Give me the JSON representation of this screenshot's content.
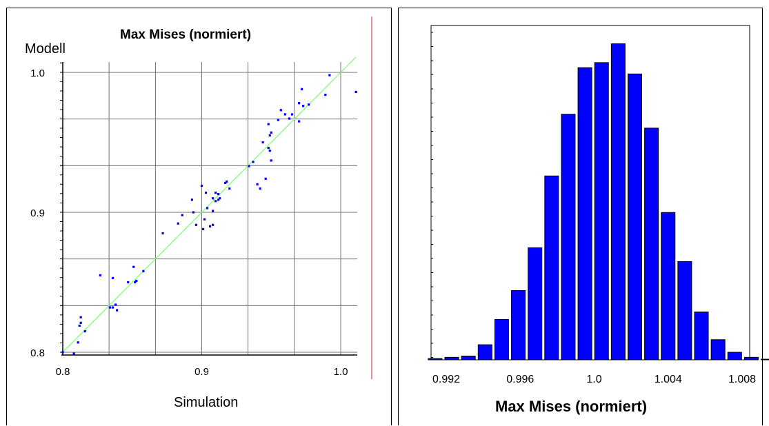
{
  "colors": {
    "points": "#0000ff",
    "fit_line": "#80ff80",
    "grid": "#707070",
    "bars": "#0000ff",
    "bar_edge": "#000000",
    "marker_line": "#d02020"
  },
  "chart_data": [
    {
      "type": "scatter",
      "title": "Max Mises (normiert)",
      "xlabel": "Simulation",
      "ylabel": "Modell",
      "xlim": [
        0.8,
        1.01
      ],
      "ylim": [
        0.8,
        1.01
      ],
      "xticks": [
        0.8,
        0.9,
        1.0
      ],
      "xtick_labels": [
        "0.8",
        "0.9",
        "1.0"
      ],
      "yticks": [
        0.8,
        0.9,
        1.0
      ],
      "ytick_labels": [
        "0.8",
        "0.9",
        "1.0"
      ],
      "grid": true,
      "reference_line": [
        [
          0.8,
          0.8
        ],
        [
          1.011,
          1.011
        ]
      ],
      "series": [
        {
          "x": [
            0.8,
            0.808,
            0.811,
            0.812,
            0.813,
            0.816,
            0.813,
            0.827,
            0.834,
            0.836,
            0.836,
            0.838,
            0.839,
            0.847,
            0.851,
            0.852,
            0.853,
            0.858,
            0.872,
            0.883,
            0.886,
            0.893,
            0.894,
            0.896,
            0.9,
            0.902,
            0.901,
            0.904,
            0.903,
            0.906,
            0.908,
            0.91,
            0.91,
            0.912,
            0.912,
            0.913,
            0.908,
            0.908,
            0.917,
            0.918,
            0.92,
            0.934,
            0.937,
            0.94,
            0.942,
            0.944,
            0.946,
            0.948,
            0.95,
            0.949,
            0.949,
            0.948,
            0.95,
            0.955,
            0.957,
            0.96,
            0.963,
            0.965,
            0.97,
            0.97,
            0.972,
            0.973,
            0.977,
            0.989,
            0.992,
            1.011
          ],
          "y": [
            0.8,
            0.799,
            0.807,
            0.819,
            0.825,
            0.815,
            0.821,
            0.855,
            0.832,
            0.832,
            0.853,
            0.834,
            0.83,
            0.85,
            0.861,
            0.85,
            0.851,
            0.858,
            0.885,
            0.892,
            0.898,
            0.909,
            0.9,
            0.891,
            0.919,
            0.895,
            0.888,
            0.903,
            0.914,
            0.89,
            0.901,
            0.908,
            0.914,
            0.913,
            0.909,
            0.91,
            0.891,
            0.91,
            0.921,
            0.922,
            0.917,
            0.933,
            0.936,
            0.92,
            0.917,
            0.95,
            0.924,
            0.946,
            0.937,
            0.944,
            0.955,
            0.963,
            0.957,
            0.966,
            0.973,
            0.97,
            0.967,
            0.97,
            0.965,
            0.978,
            0.988,
            0.976,
            0.977,
            0.984,
            0.998,
            0.986
          ]
        }
      ]
    },
    {
      "type": "bar",
      "title": "",
      "xlabel": "Max Mises (normiert)",
      "ylabel": "",
      "xtick_labels": [
        "0.992",
        "0.996",
        "1.0",
        "1.004",
        "1.008"
      ],
      "xticks": [
        0.992,
        0.996,
        1.0,
        1.004,
        1.008
      ],
      "bin_centers": [
        0.9914,
        0.9923,
        0.9932,
        0.9941,
        0.995,
        0.9959,
        0.9968,
        0.9977,
        0.9986,
        0.9995,
        1.0004,
        1.0013,
        1.0022,
        1.0031,
        1.004,
        1.0049,
        1.0058,
        1.0067,
        1.0076,
        1.0085,
        1.0094
      ],
      "values": [
        1,
        2,
        3,
        12,
        32,
        55,
        89,
        146,
        195,
        232,
        236,
        251,
        227,
        184,
        117,
        78,
        38,
        16,
        6,
        2,
        0.5
      ],
      "ylim": [
        0,
        260
      ],
      "grid": false
    }
  ]
}
